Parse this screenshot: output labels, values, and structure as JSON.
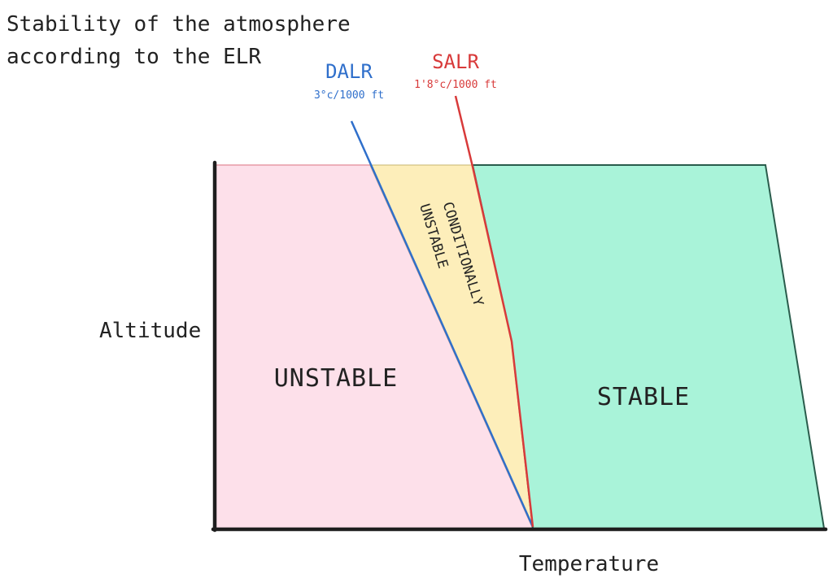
{
  "title": {
    "line1": "Stability of the atmosphere",
    "line2": "according to the ELR"
  },
  "axes": {
    "y_label": "Altitude",
    "x_label": "Temperature"
  },
  "regions": {
    "unstable": "UNSTABLE",
    "conditionally_line1": "CONDITIONALLY",
    "conditionally_line2": "UNSTABLE",
    "stable": "STABLE"
  },
  "lapse_rates": {
    "dalr_name": "DALR",
    "dalr_rate": "3°c/1000 ft",
    "salr_name": "SALR",
    "salr_rate": "1'8°c/1000 ft"
  },
  "colors": {
    "unstable_fill": "#fde0ea",
    "conditional_fill": "#fdeeba",
    "stable_fill": "#a9f3d9",
    "dalr_color": "#2f6fcb",
    "salr_color": "#d83a3a",
    "axis_color": "#1e1e1e",
    "text_color": "#222222"
  }
}
